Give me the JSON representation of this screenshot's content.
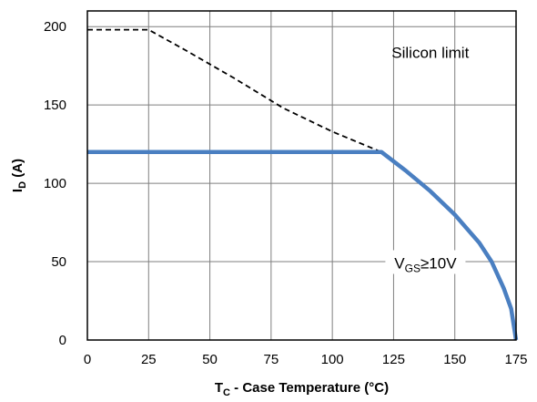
{
  "chart_data": {
    "type": "line",
    "xlabel": {
      "main": "T",
      "sub": "C",
      "rest": " - Case Temperature (°C)"
    },
    "ylabel": {
      "main": "I",
      "sub": "D",
      "rest": " (A)"
    },
    "xlim": [
      0,
      175
    ],
    "ylim": [
      0,
      210
    ],
    "x_ticks": [
      0,
      25,
      50,
      75,
      100,
      125,
      150,
      175
    ],
    "y_ticks": [
      0,
      50,
      100,
      150,
      200
    ],
    "grid": true,
    "series": [
      {
        "style": "dashed",
        "color": "#000000",
        "x": [
          0,
          25,
          40,
          60,
          80,
          100,
          120
        ],
        "y": [
          198,
          198,
          185,
          167,
          148,
          133,
          120
        ]
      },
      {
        "style": "solid",
        "color": "#4a7fc1",
        "x": [
          0,
          120,
          130,
          140,
          150,
          160,
          165,
          170,
          173,
          175
        ],
        "y": [
          120,
          120,
          108,
          95,
          80,
          62,
          50,
          33,
          20,
          0
        ]
      }
    ],
    "annotations": [
      {
        "id": "silicon",
        "text": "Silicon limit",
        "x": 140,
        "y": 180
      },
      {
        "id": "vgs",
        "text_main": "V",
        "text_sub": "GS",
        "text_rest": "≥10V",
        "x": 138,
        "y": 48
      }
    ]
  }
}
